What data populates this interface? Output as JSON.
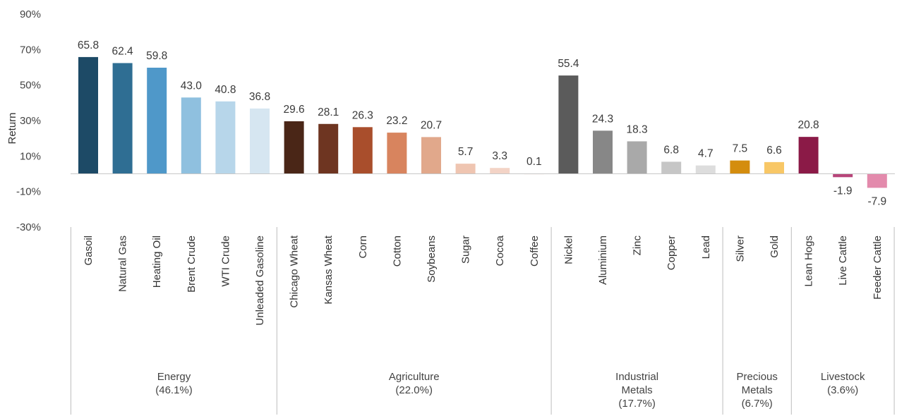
{
  "chart_data": {
    "type": "bar",
    "title": "",
    "ylabel": "Return",
    "ylim": [
      -30,
      90
    ],
    "yticks": [
      "-30%",
      "-10%",
      "10%",
      "30%",
      "50%",
      "70%",
      "90%"
    ],
    "ytick_values": [
      -30,
      -10,
      10,
      30,
      50,
      70,
      90
    ],
    "grid": false,
    "legend": "none",
    "categories": [
      "Gasoil",
      "Natural Gas",
      "Heating Oil",
      "Brent Crude",
      "WTI Crude",
      "Unleaded Gasoline",
      "Chicago Wheat",
      "Kansas Wheat",
      "Corn",
      "Cotton",
      "Soybeans",
      "Sugar",
      "Cocoa",
      "Coffee",
      "Nickel",
      "Aluminium",
      "Zinc",
      "Copper",
      "Lead",
      "Silver",
      "Gold",
      "Lean Hogs",
      "Live Cattle",
      "Feeder Cattle"
    ],
    "values": [
      65.8,
      62.4,
      59.8,
      43.0,
      40.8,
      36.8,
      29.6,
      28.1,
      26.3,
      23.2,
      20.7,
      5.7,
      3.3,
      0.1,
      55.4,
      24.3,
      18.3,
      6.8,
      4.7,
      7.5,
      6.6,
      20.8,
      -1.9,
      -7.9
    ],
    "value_labels": [
      "65.8",
      "62.4",
      "59.8",
      "43.0",
      "40.8",
      "36.8",
      "29.6",
      "28.1",
      "26.3",
      "23.2",
      "20.7",
      "5.7",
      "3.3",
      "0.1",
      "55.4",
      "24.3",
      "18.3",
      "6.8",
      "4.7",
      "7.5",
      "6.6",
      "20.8",
      "-1.9",
      "-7.9"
    ],
    "colors": [
      "#1d4a66",
      "#2f6e93",
      "#4f98c9",
      "#8fc0df",
      "#b7d6ea",
      "#d6e6f1",
      "#4a2617",
      "#6e3521",
      "#a94e2c",
      "#d8845e",
      "#e1a88b",
      "#efc5b1",
      "#f3d3c6",
      "#f8e9e2",
      "#5b5b5b",
      "#878787",
      "#a9a9a9",
      "#c6c6c6",
      "#dddddd",
      "#d48d0e",
      "#f8c766",
      "#8b1a47",
      "#b7457a",
      "#e38aac"
    ],
    "groups": [
      {
        "lines": [
          "Energy",
          "(46.1%)"
        ],
        "start": 0,
        "end": 5
      },
      {
        "lines": [
          "Agriculture",
          "(22.0%)"
        ],
        "start": 6,
        "end": 13
      },
      {
        "lines": [
          "Industrial",
          "Metals",
          "(17.7%)"
        ],
        "start": 14,
        "end": 18
      },
      {
        "lines": [
          "Precious",
          "Metals",
          "(6.7%)"
        ],
        "start": 19,
        "end": 20
      },
      {
        "lines": [
          "Livestock",
          "(3.6%)"
        ],
        "start": 21,
        "end": 23
      }
    ]
  }
}
